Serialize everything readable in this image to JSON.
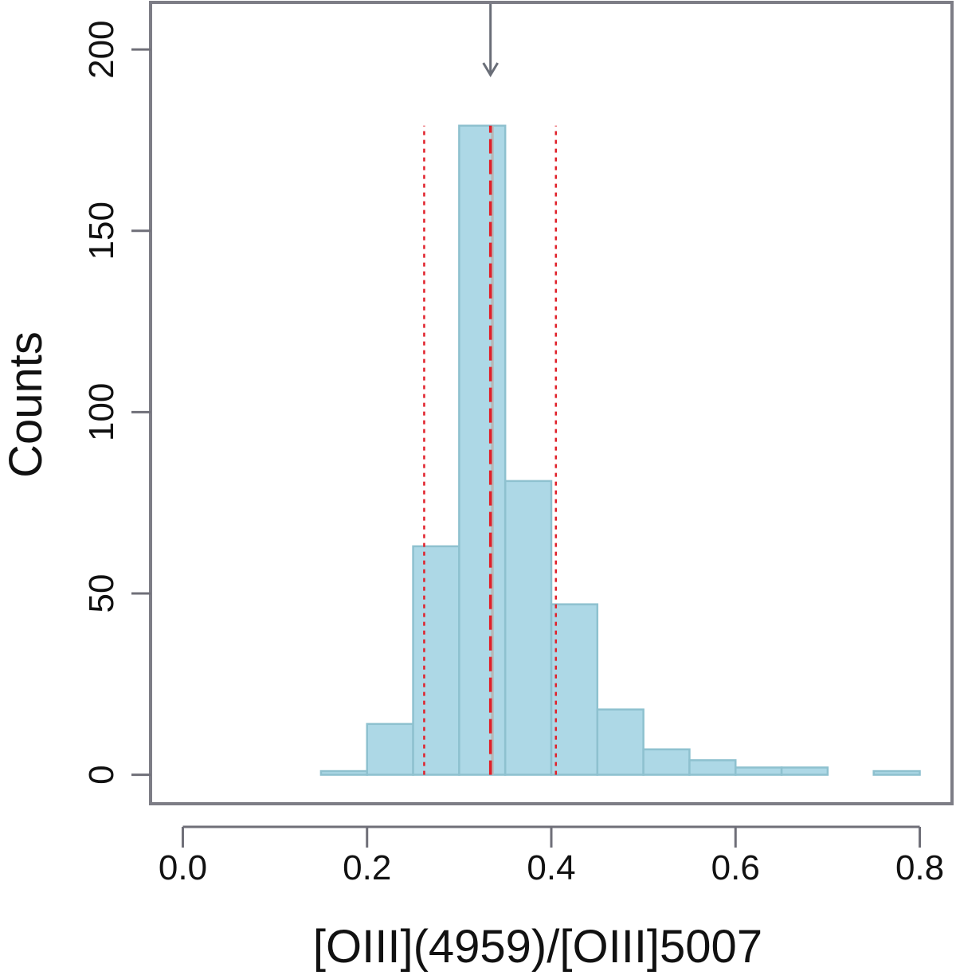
{
  "chart_data": {
    "type": "histogram",
    "xlabel": "[OIII](4959)/[OIII]5007",
    "ylabel": "Counts",
    "xlim": [
      -0.035,
      0.835
    ],
    "ylim": [
      -8,
      213
    ],
    "x_ticks": [
      0.0,
      0.2,
      0.4,
      0.6,
      0.8
    ],
    "x_tick_labels": [
      "0.0",
      "0.2",
      "0.4",
      "0.6",
      "0.8"
    ],
    "y_ticks": [
      0,
      50,
      100,
      150,
      200
    ],
    "y_tick_labels": [
      "0",
      "50",
      "100",
      "150",
      "200"
    ],
    "bins": [
      {
        "x0": 0.15,
        "x1": 0.2,
        "count": 1
      },
      {
        "x0": 0.2,
        "x1": 0.25,
        "count": 14
      },
      {
        "x0": 0.25,
        "x1": 0.3,
        "count": 63
      },
      {
        "x0": 0.3,
        "x1": 0.35,
        "count": 179
      },
      {
        "x0": 0.35,
        "x1": 0.4,
        "count": 81
      },
      {
        "x0": 0.4,
        "x1": 0.45,
        "count": 47
      },
      {
        "x0": 0.45,
        "x1": 0.5,
        "count": 18
      },
      {
        "x0": 0.5,
        "x1": 0.55,
        "count": 7
      },
      {
        "x0": 0.55,
        "x1": 0.6,
        "count": 4
      },
      {
        "x0": 0.6,
        "x1": 0.65,
        "count": 2
      },
      {
        "x0": 0.65,
        "x1": 0.7,
        "count": 2
      },
      {
        "x0": 0.7,
        "x1": 0.75,
        "count": 0
      },
      {
        "x0": 0.75,
        "x1": 0.8,
        "count": 1
      }
    ],
    "reference_lines": [
      {
        "x": 0.336,
        "style": "solid",
        "color": "#b8b8b8",
        "y_top": 179
      },
      {
        "x": 0.334,
        "style": "dashed",
        "color": "#e0202a",
        "y_top": 179
      },
      {
        "x": 0.262,
        "style": "dotted",
        "color": "#e0202a",
        "y_top": 179
      },
      {
        "x": 0.405,
        "style": "dotted",
        "color": "#e0202a",
        "y_top": 179
      }
    ],
    "arrow_marker": {
      "x": 0.334,
      "color": "#6a6e78"
    },
    "colors": {
      "bar_fill": "#add8e6",
      "bar_edge": "#8ec1cf",
      "frame": "#7d7d86",
      "axis": "#6f6f78"
    },
    "grid": false
  }
}
